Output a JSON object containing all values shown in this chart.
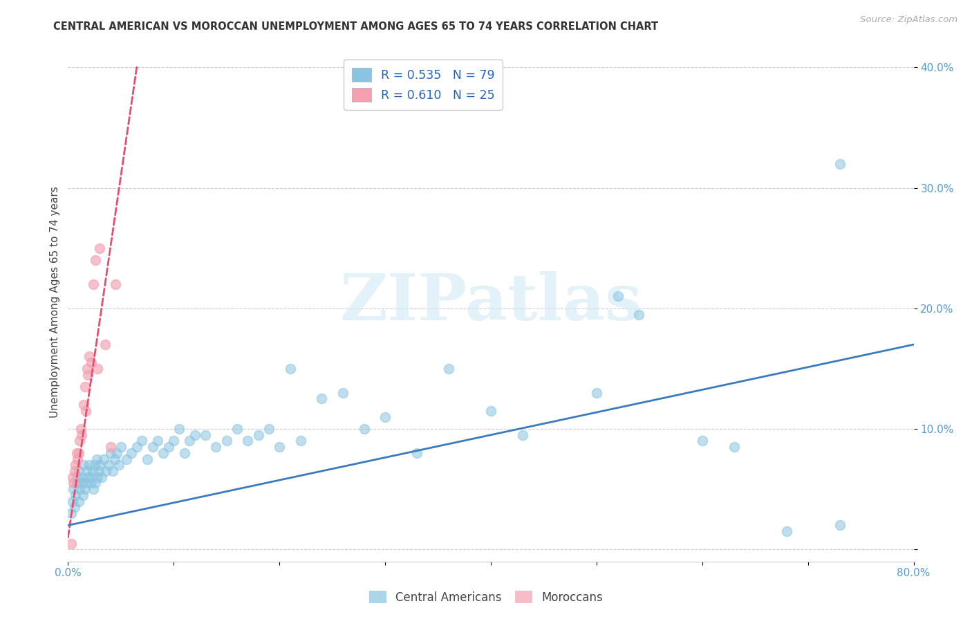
{
  "title": "CENTRAL AMERICAN VS MOROCCAN UNEMPLOYMENT AMONG AGES 65 TO 74 YEARS CORRELATION CHART",
  "source": "Source: ZipAtlas.com",
  "ylabel": "Unemployment Among Ages 65 to 74 years",
  "xlim": [
    0,
    0.8
  ],
  "ylim": [
    -0.01,
    0.42
  ],
  "blue_color": "#89c4e1",
  "pink_color": "#f4a0b0",
  "blue_line_color": "#3a7bbf",
  "pink_line_color": "#e05070",
  "watermark_text": "ZIPatlas",
  "legend_R_blue": "R = 0.535",
  "legend_N_blue": "N = 79",
  "legend_R_pink": "R = 0.610",
  "legend_N_pink": "N = 25",
  "ca_x": [
    0.003,
    0.004,
    0.005,
    0.006,
    0.007,
    0.008,
    0.009,
    0.01,
    0.01,
    0.011,
    0.012,
    0.013,
    0.014,
    0.015,
    0.016,
    0.017,
    0.018,
    0.019,
    0.02,
    0.021,
    0.022,
    0.023,
    0.024,
    0.025,
    0.026,
    0.027,
    0.028,
    0.029,
    0.03,
    0.032,
    0.034,
    0.036,
    0.038,
    0.04,
    0.042,
    0.044,
    0.046,
    0.048,
    0.05,
    0.055,
    0.06,
    0.065,
    0.07,
    0.075,
    0.08,
    0.085,
    0.09,
    0.095,
    0.1,
    0.105,
    0.11,
    0.115,
    0.12,
    0.13,
    0.14,
    0.15,
    0.16,
    0.17,
    0.18,
    0.19,
    0.2,
    0.21,
    0.22,
    0.24,
    0.26,
    0.28,
    0.3,
    0.33,
    0.36,
    0.4,
    0.43,
    0.5,
    0.52,
    0.54,
    0.6,
    0.63,
    0.68,
    0.73,
    0.73
  ],
  "ca_y": [
    0.03,
    0.04,
    0.05,
    0.035,
    0.045,
    0.055,
    0.06,
    0.04,
    0.065,
    0.05,
    0.055,
    0.06,
    0.045,
    0.07,
    0.05,
    0.055,
    0.065,
    0.06,
    0.07,
    0.055,
    0.06,
    0.065,
    0.05,
    0.07,
    0.055,
    0.075,
    0.06,
    0.065,
    0.07,
    0.06,
    0.075,
    0.065,
    0.07,
    0.08,
    0.065,
    0.075,
    0.08,
    0.07,
    0.085,
    0.075,
    0.08,
    0.085,
    0.09,
    0.075,
    0.085,
    0.09,
    0.08,
    0.085,
    0.09,
    0.1,
    0.08,
    0.09,
    0.095,
    0.095,
    0.085,
    0.09,
    0.1,
    0.09,
    0.095,
    0.1,
    0.085,
    0.15,
    0.09,
    0.125,
    0.13,
    0.1,
    0.11,
    0.08,
    0.15,
    0.115,
    0.095,
    0.13,
    0.21,
    0.195,
    0.09,
    0.085,
    0.015,
    0.32,
    0.02
  ],
  "mo_x": [
    0.003,
    0.004,
    0.005,
    0.006,
    0.007,
    0.008,
    0.009,
    0.01,
    0.011,
    0.012,
    0.013,
    0.015,
    0.016,
    0.017,
    0.018,
    0.019,
    0.02,
    0.022,
    0.024,
    0.026,
    0.028,
    0.03,
    0.035,
    0.04,
    0.045
  ],
  "mo_y": [
    0.005,
    0.06,
    0.055,
    0.065,
    0.07,
    0.08,
    0.075,
    0.08,
    0.09,
    0.1,
    0.095,
    0.12,
    0.135,
    0.115,
    0.15,
    0.145,
    0.16,
    0.155,
    0.22,
    0.24,
    0.15,
    0.25,
    0.17,
    0.085,
    0.22
  ],
  "blue_trendline_x": [
    0.0,
    0.8
  ],
  "blue_trendline_y": [
    0.02,
    0.17
  ],
  "pink_trendline_x": [
    0.0,
    0.065
  ],
  "pink_trendline_y": [
    0.01,
    0.4
  ]
}
